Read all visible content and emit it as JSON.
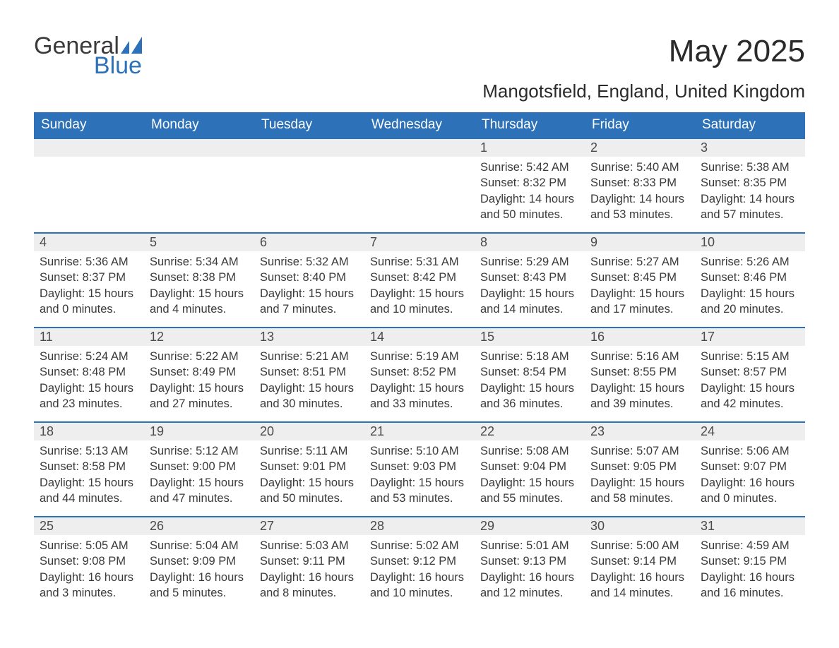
{
  "brand": {
    "word1": "General",
    "word2": "Blue"
  },
  "title": "May 2025",
  "location": "Mangotsfield, England, United Kingdom",
  "colors": {
    "header_bg": "#2d72b8",
    "header_fg": "#ffffff",
    "stripe_bg": "#eeeeee",
    "rule": "#2d72b8",
    "text": "#3a3a3a"
  },
  "weekdays": [
    "Sunday",
    "Monday",
    "Tuesday",
    "Wednesday",
    "Thursday",
    "Friday",
    "Saturday"
  ],
  "weeks": [
    [
      null,
      null,
      null,
      null,
      {
        "n": "1",
        "sunrise": "5:42 AM",
        "sunset": "8:32 PM",
        "daylight": "14 hours and 50 minutes."
      },
      {
        "n": "2",
        "sunrise": "5:40 AM",
        "sunset": "8:33 PM",
        "daylight": "14 hours and 53 minutes."
      },
      {
        "n": "3",
        "sunrise": "5:38 AM",
        "sunset": "8:35 PM",
        "daylight": "14 hours and 57 minutes."
      }
    ],
    [
      {
        "n": "4",
        "sunrise": "5:36 AM",
        "sunset": "8:37 PM",
        "daylight": "15 hours and 0 minutes."
      },
      {
        "n": "5",
        "sunrise": "5:34 AM",
        "sunset": "8:38 PM",
        "daylight": "15 hours and 4 minutes."
      },
      {
        "n": "6",
        "sunrise": "5:32 AM",
        "sunset": "8:40 PM",
        "daylight": "15 hours and 7 minutes."
      },
      {
        "n": "7",
        "sunrise": "5:31 AM",
        "sunset": "8:42 PM",
        "daylight": "15 hours and 10 minutes."
      },
      {
        "n": "8",
        "sunrise": "5:29 AM",
        "sunset": "8:43 PM",
        "daylight": "15 hours and 14 minutes."
      },
      {
        "n": "9",
        "sunrise": "5:27 AM",
        "sunset": "8:45 PM",
        "daylight": "15 hours and 17 minutes."
      },
      {
        "n": "10",
        "sunrise": "5:26 AM",
        "sunset": "8:46 PM",
        "daylight": "15 hours and 20 minutes."
      }
    ],
    [
      {
        "n": "11",
        "sunrise": "5:24 AM",
        "sunset": "8:48 PM",
        "daylight": "15 hours and 23 minutes."
      },
      {
        "n": "12",
        "sunrise": "5:22 AM",
        "sunset": "8:49 PM",
        "daylight": "15 hours and 27 minutes."
      },
      {
        "n": "13",
        "sunrise": "5:21 AM",
        "sunset": "8:51 PM",
        "daylight": "15 hours and 30 minutes."
      },
      {
        "n": "14",
        "sunrise": "5:19 AM",
        "sunset": "8:52 PM",
        "daylight": "15 hours and 33 minutes."
      },
      {
        "n": "15",
        "sunrise": "5:18 AM",
        "sunset": "8:54 PM",
        "daylight": "15 hours and 36 minutes."
      },
      {
        "n": "16",
        "sunrise": "5:16 AM",
        "sunset": "8:55 PM",
        "daylight": "15 hours and 39 minutes."
      },
      {
        "n": "17",
        "sunrise": "5:15 AM",
        "sunset": "8:57 PM",
        "daylight": "15 hours and 42 minutes."
      }
    ],
    [
      {
        "n": "18",
        "sunrise": "5:13 AM",
        "sunset": "8:58 PM",
        "daylight": "15 hours and 44 minutes."
      },
      {
        "n": "19",
        "sunrise": "5:12 AM",
        "sunset": "9:00 PM",
        "daylight": "15 hours and 47 minutes."
      },
      {
        "n": "20",
        "sunrise": "5:11 AM",
        "sunset": "9:01 PM",
        "daylight": "15 hours and 50 minutes."
      },
      {
        "n": "21",
        "sunrise": "5:10 AM",
        "sunset": "9:03 PM",
        "daylight": "15 hours and 53 minutes."
      },
      {
        "n": "22",
        "sunrise": "5:08 AM",
        "sunset": "9:04 PM",
        "daylight": "15 hours and 55 minutes."
      },
      {
        "n": "23",
        "sunrise": "5:07 AM",
        "sunset": "9:05 PM",
        "daylight": "15 hours and 58 minutes."
      },
      {
        "n": "24",
        "sunrise": "5:06 AM",
        "sunset": "9:07 PM",
        "daylight": "16 hours and 0 minutes."
      }
    ],
    [
      {
        "n": "25",
        "sunrise": "5:05 AM",
        "sunset": "9:08 PM",
        "daylight": "16 hours and 3 minutes."
      },
      {
        "n": "26",
        "sunrise": "5:04 AM",
        "sunset": "9:09 PM",
        "daylight": "16 hours and 5 minutes."
      },
      {
        "n": "27",
        "sunrise": "5:03 AM",
        "sunset": "9:11 PM",
        "daylight": "16 hours and 8 minutes."
      },
      {
        "n": "28",
        "sunrise": "5:02 AM",
        "sunset": "9:12 PM",
        "daylight": "16 hours and 10 minutes."
      },
      {
        "n": "29",
        "sunrise": "5:01 AM",
        "sunset": "9:13 PM",
        "daylight": "16 hours and 12 minutes."
      },
      {
        "n": "30",
        "sunrise": "5:00 AM",
        "sunset": "9:14 PM",
        "daylight": "16 hours and 14 minutes."
      },
      {
        "n": "31",
        "sunrise": "4:59 AM",
        "sunset": "9:15 PM",
        "daylight": "16 hours and 16 minutes."
      }
    ]
  ],
  "labels": {
    "sunrise": "Sunrise: ",
    "sunset": "Sunset: ",
    "daylight": "Daylight: "
  }
}
